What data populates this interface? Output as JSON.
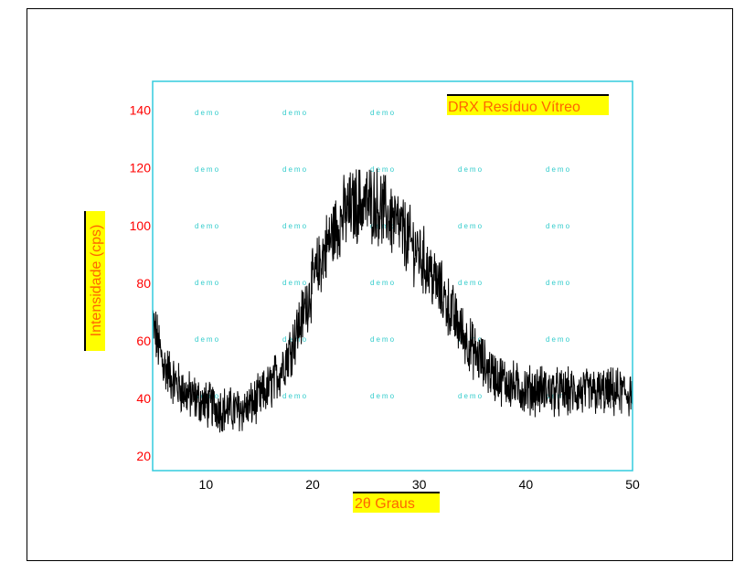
{
  "chart_data": {
    "type": "line",
    "title": "DRX Resíduo Vítreo",
    "xlabel": "2θ  Graus",
    "ylabel": "Intensidade (cps)",
    "xlim": [
      5,
      50
    ],
    "ylim": [
      15,
      150
    ],
    "x_ticks": [
      10,
      20,
      30,
      40,
      50
    ],
    "y_ticks": [
      20,
      40,
      60,
      80,
      100,
      120,
      140
    ],
    "watermark_text": "demo",
    "grid": false,
    "legend": "none",
    "colors": {
      "plot_border": "#33ccdd",
      "line": "#000000",
      "tick_label": "#ff0000",
      "label_highlight": "#ffff00",
      "label_text": "#ff6600",
      "watermark": "#33cccc"
    },
    "series": [
      {
        "x": [
          5,
          6,
          7,
          8,
          9,
          10,
          11,
          12,
          13,
          14,
          15,
          16,
          17,
          18,
          19,
          20,
          21,
          22,
          23,
          24,
          25,
          26,
          27,
          28,
          29,
          30,
          31,
          32,
          33,
          34,
          35,
          36,
          37,
          38,
          39,
          40,
          41,
          42,
          43,
          44,
          45,
          46,
          47,
          48,
          49,
          50
        ],
        "values": [
          66,
          52,
          46,
          42,
          40,
          38,
          37,
          36,
          36,
          37,
          40,
          44,
          50,
          58,
          68,
          80,
          90,
          98,
          104,
          107,
          108,
          107,
          104,
          100,
          95,
          90,
          84,
          77,
          70,
          63,
          57,
          52,
          48,
          46,
          44,
          43,
          43,
          43,
          42,
          42,
          42,
          42,
          42,
          42,
          42,
          42
        ],
        "noise_amplitude": 10
      }
    ]
  }
}
